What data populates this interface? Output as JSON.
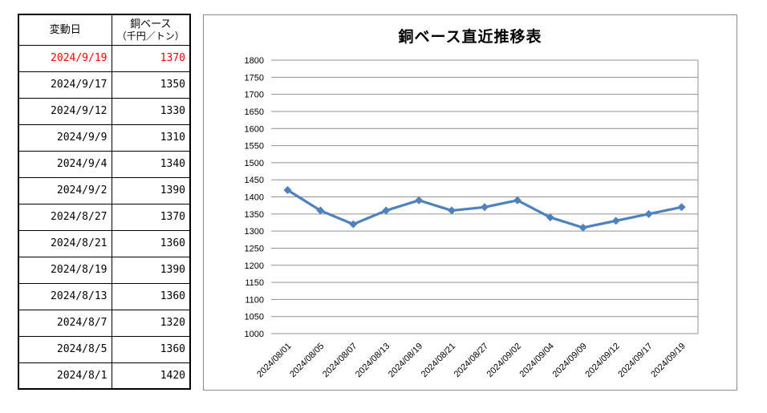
{
  "table": {
    "header": {
      "date_col": "変動日",
      "price_col_line1": "銅ベース",
      "price_col_line2": "（千円／トン）"
    },
    "rows": [
      {
        "date": "2024/9/19",
        "price": "1370",
        "highlight": true
      },
      {
        "date": "2024/9/17",
        "price": "1350",
        "highlight": false
      },
      {
        "date": "2024/9/12",
        "price": "1330",
        "highlight": false
      },
      {
        "date": "2024/9/9",
        "price": "1310",
        "highlight": false
      },
      {
        "date": "2024/9/4",
        "price": "1340",
        "highlight": false
      },
      {
        "date": "2024/9/2",
        "price": "1390",
        "highlight": false
      },
      {
        "date": "2024/8/27",
        "price": "1370",
        "highlight": false
      },
      {
        "date": "2024/8/21",
        "price": "1360",
        "highlight": false
      },
      {
        "date": "2024/8/19",
        "price": "1390",
        "highlight": false
      },
      {
        "date": "2024/8/13",
        "price": "1360",
        "highlight": false
      },
      {
        "date": "2024/8/7",
        "price": "1320",
        "highlight": false
      },
      {
        "date": "2024/8/5",
        "price": "1360",
        "highlight": false
      },
      {
        "date": "2024/8/1",
        "price": "1420",
        "highlight": false
      }
    ],
    "highlight_color": "#ff0000",
    "text_color": "#000000"
  },
  "chart_data": {
    "type": "line",
    "title": "銅ベース直近推移表",
    "categories": [
      "2024/08/01",
      "2024/08/05",
      "2024/08/07",
      "2024/08/13",
      "2024/08/19",
      "2024/08/21",
      "2024/08/27",
      "2024/09/02",
      "2024/09/04",
      "2024/09/09",
      "2024/09/12",
      "2024/09/17",
      "2024/09/19"
    ],
    "values": [
      1420,
      1360,
      1320,
      1360,
      1390,
      1360,
      1370,
      1390,
      1340,
      1310,
      1330,
      1350,
      1370
    ],
    "xlabel": "",
    "ylabel": "",
    "ylim": [
      1000,
      1800
    ],
    "ytick_step": 50,
    "grid": "horizontal-major",
    "legend": "none",
    "line_color": "#4f81bd",
    "marker": "diamond",
    "gridline_color": "#909090",
    "axis_label_color": "#000000",
    "frame_border_color": "#8c8c8c"
  }
}
